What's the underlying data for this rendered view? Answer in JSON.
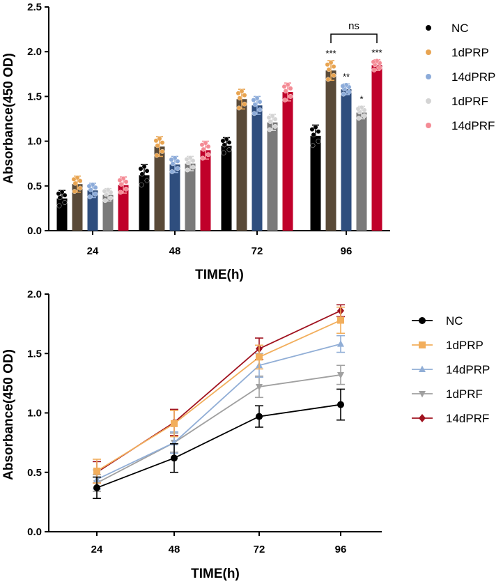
{
  "chart_data": [
    {
      "type": "bar",
      "title": "",
      "xlabel": "TIME(h)",
      "ylabel": "Absorbance(450 OD)",
      "categories": [
        "24",
        "48",
        "72",
        "96"
      ],
      "ylim": [
        0,
        2.5
      ],
      "yticks": [
        "0.0",
        "0.5",
        "1.0",
        "1.5",
        "2.0",
        "2.5"
      ],
      "series": [
        {
          "name": "NC",
          "values": [
            0.36,
            0.62,
            0.95,
            1.06
          ],
          "errors": [
            0.09,
            0.12,
            0.09,
            0.12
          ],
          "bar_color": "#000000",
          "marker_color": "#000000"
        },
        {
          "name": "1dPRP",
          "values": [
            0.52,
            0.94,
            1.47,
            1.79
          ],
          "errors": [
            0.09,
            0.11,
            0.11,
            0.11
          ],
          "bar_color": "#5a4a38",
          "marker_color": "#e8a451"
        },
        {
          "name": "14dPRP",
          "values": [
            0.45,
            0.74,
            1.4,
            1.58
          ],
          "errors": [
            0.08,
            0.09,
            0.1,
            0.06
          ],
          "bar_color": "#2f4e7e",
          "marker_color": "#8cabd9"
        },
        {
          "name": "1dPRF",
          "values": [
            0.4,
            0.75,
            1.21,
            1.32
          ],
          "errors": [
            0.07,
            0.08,
            0.09,
            0.07
          ],
          "bar_color": "#7a7a7a",
          "marker_color": "#d4d4d4"
        },
        {
          "name": "14dPRF",
          "values": [
            0.51,
            0.9,
            1.55,
            1.85
          ],
          "errors": [
            0.09,
            0.1,
            0.1,
            0.06
          ],
          "bar_color": "#c0002a",
          "marker_color": "#f48b95"
        }
      ],
      "annotations": [
        {
          "category": "96",
          "series": "1dPRP",
          "text": "***"
        },
        {
          "category": "96",
          "series": "14dPRP",
          "text": "**"
        },
        {
          "category": "96",
          "series": "1dPRF",
          "text": "*"
        },
        {
          "category": "96",
          "series": "14dPRF",
          "text": "***"
        }
      ],
      "bracket": {
        "from_series": "1dPRP",
        "to_series": "14dPRF",
        "category": "96",
        "text": "ns"
      },
      "legend": "right"
    },
    {
      "type": "line",
      "title": "",
      "xlabel": "TIME(h)",
      "ylabel": "Absorbance(450 OD)",
      "categories": [
        "24",
        "48",
        "72",
        "96"
      ],
      "ylim": [
        0,
        2.0
      ],
      "yticks": [
        "0.0",
        "0.5",
        "1.0",
        "1.5",
        "2.0"
      ],
      "series": [
        {
          "name": "NC",
          "marker": "circle",
          "color": "#000000",
          "values": [
            0.37,
            0.62,
            0.97,
            1.07
          ],
          "errors": [
            0.09,
            0.12,
            0.09,
            0.13
          ]
        },
        {
          "name": "1dPRP",
          "marker": "square",
          "color": "#f2ae5c",
          "values": [
            0.51,
            0.91,
            1.47,
            1.78
          ],
          "errors": [
            0.1,
            0.11,
            0.1,
            0.11
          ]
        },
        {
          "name": "14dPRP",
          "marker": "triangle-up",
          "color": "#91aed6",
          "values": [
            0.44,
            0.75,
            1.4,
            1.58
          ],
          "errors": [
            0.08,
            0.09,
            0.1,
            0.07
          ]
        },
        {
          "name": "1dPRF",
          "marker": "triangle-down",
          "color": "#a0a0a0",
          "values": [
            0.41,
            0.75,
            1.22,
            1.32
          ],
          "errors": [
            0.07,
            0.08,
            0.09,
            0.08
          ]
        },
        {
          "name": "14dPRF",
          "marker": "diamond",
          "color": "#a0121f",
          "values": [
            0.5,
            0.92,
            1.54,
            1.86
          ],
          "errors": [
            0.09,
            0.11,
            0.09,
            0.05
          ]
        }
      ],
      "legend": "right"
    }
  ]
}
